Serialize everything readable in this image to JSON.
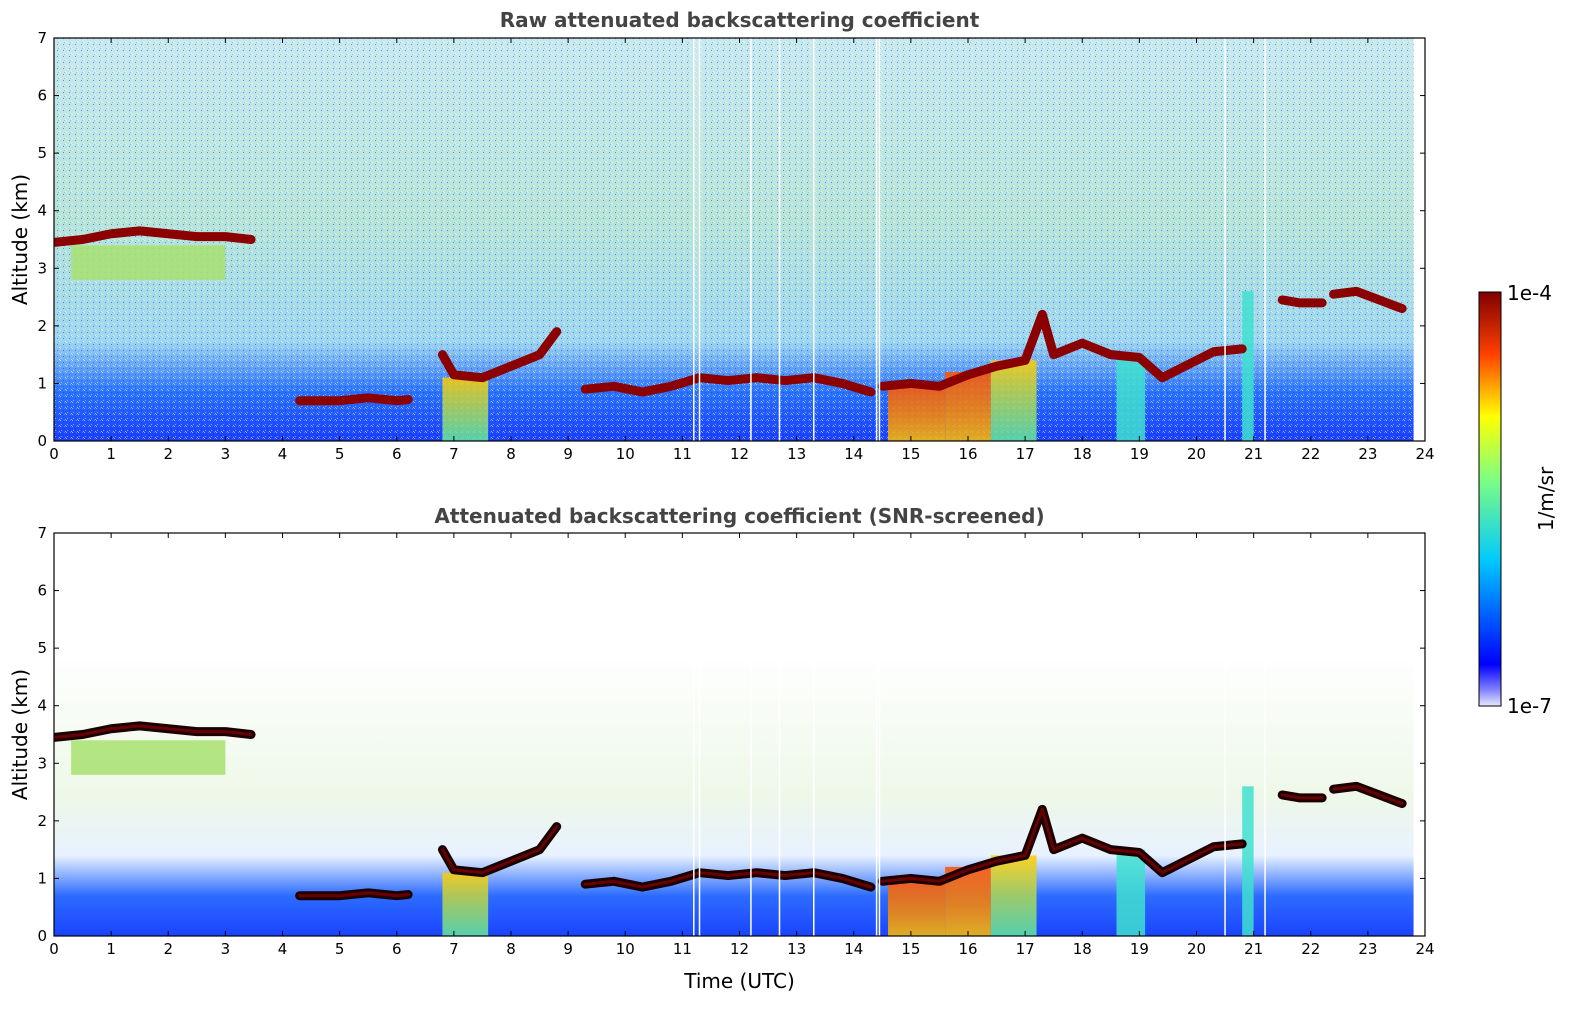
{
  "colors": {
    "jet": [
      "#00008f",
      "#0000ff",
      "#00ffff",
      "#ffff00",
      "#ff0000",
      "#800000"
    ],
    "cloud": "#800000",
    "background": "#ffffff"
  },
  "chart_data": [
    {
      "type": "heatmap",
      "title": "Raw attenuated backscattering coefficient",
      "xlabel": "",
      "ylabel": "Altitude (km)",
      "xlim": [
        0,
        24
      ],
      "ylim": [
        0,
        7
      ],
      "xticks": [
        "0",
        "1",
        "2",
        "3",
        "4",
        "5",
        "6",
        "7",
        "8",
        "9",
        "10",
        "11",
        "12",
        "13",
        "14",
        "15",
        "16",
        "17",
        "18",
        "19",
        "20",
        "21",
        "22",
        "23",
        "24"
      ],
      "yticks": [
        "0",
        "1",
        "2",
        "3",
        "4",
        "5",
        "6",
        "7"
      ],
      "cloud_layers": [
        {
          "x": [
            0,
            0.5,
            1,
            1.5,
            2,
            2.5,
            3,
            3.45
          ],
          "y": [
            3.45,
            3.5,
            3.6,
            3.65,
            3.6,
            3.55,
            3.55,
            3.5
          ]
        },
        {
          "x": [
            4.3,
            5,
            5.5,
            6,
            6.2
          ],
          "y": [
            0.7,
            0.7,
            0.75,
            0.7,
            0.72
          ]
        },
        {
          "x": [
            6.8,
            7,
            7.5,
            8,
            8.5,
            8.8
          ],
          "y": [
            1.5,
            1.15,
            1.1,
            1.3,
            1.5,
            1.9
          ]
        },
        {
          "x": [
            9.3,
            9.8,
            10.3,
            10.8,
            11.3,
            11.8,
            12.3,
            12.8,
            13.3,
            13.8,
            14.3
          ],
          "y": [
            0.9,
            0.95,
            0.85,
            0.95,
            1.1,
            1.05,
            1.1,
            1.05,
            1.1,
            1.0,
            0.85
          ]
        },
        {
          "x": [
            14.5,
            15,
            15.5,
            16,
            16.5,
            17,
            17.3,
            17.5,
            18,
            18.5,
            19,
            19.4,
            19.8,
            20.3,
            20.8
          ],
          "y": [
            0.95,
            1.0,
            0.95,
            1.15,
            1.3,
            1.4,
            2.2,
            1.5,
            1.7,
            1.5,
            1.45,
            1.1,
            1.3,
            1.55,
            1.6
          ]
        },
        {
          "x": [
            21.5,
            21.8,
            22.2
          ],
          "y": [
            2.45,
            2.4,
            2.4
          ]
        },
        {
          "x": [
            22.4,
            22.8,
            23.2,
            23.6
          ],
          "y": [
            2.55,
            2.6,
            2.45,
            2.3
          ]
        }
      ]
    },
    {
      "type": "heatmap",
      "title": "Attenuated backscattering coefficient (SNR-screened)",
      "xlabel": "Time (UTC)",
      "ylabel": "Altitude (km)",
      "xlim": [
        0,
        24
      ],
      "ylim": [
        0,
        7
      ],
      "xticks": [
        "0",
        "1",
        "2",
        "3",
        "4",
        "5",
        "6",
        "7",
        "8",
        "9",
        "10",
        "11",
        "12",
        "13",
        "14",
        "15",
        "16",
        "17",
        "18",
        "19",
        "20",
        "21",
        "22",
        "23",
        "24"
      ],
      "yticks": [
        "0",
        "1",
        "2",
        "3",
        "4",
        "5",
        "6",
        "7"
      ]
    }
  ],
  "colorbar": {
    "label": "1/m/sr",
    "max_label": "1e-4",
    "min_label": "1e-7"
  }
}
